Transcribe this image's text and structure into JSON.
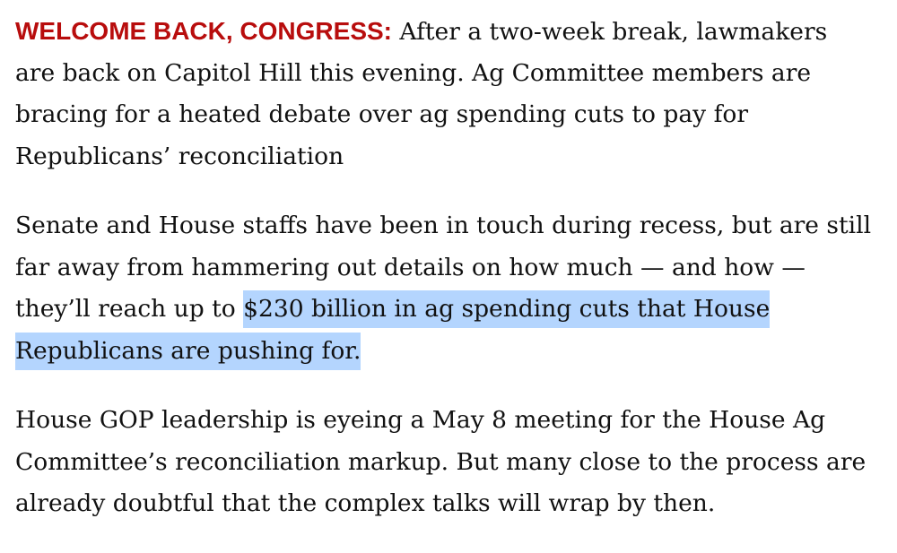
{
  "colors": {
    "kicker": "#b80d0d",
    "selection": "#b4d5fe",
    "text": "#111111"
  },
  "article": {
    "p1": {
      "kicker": "WELCOME BACK, CONGRESS:",
      "lines": [
        " After a two-week break, lawmakers",
        "are back on Capitol Hill this evening. Ag Committee members are",
        "bracing for a heated debate over ag spending cuts to pay for",
        "Republicans’ reconciliation"
      ]
    },
    "p2": {
      "lines": [
        "Senate and House staffs have been in touch during recess, but are still",
        "far away from hammering out details on how much — and how —",
        "they’ll reach up to "
      ],
      "highlighted": [
        "$230 billion in ag spending cuts that House",
        "Republicans are pushing for."
      ]
    },
    "p3": {
      "lines": [
        "House GOP leadership is eyeing a May 8 meeting for the House Ag",
        "Committee’s reconciliation markup. But many close to the process are",
        "already doubtful that the complex talks will wrap by then."
      ]
    }
  }
}
